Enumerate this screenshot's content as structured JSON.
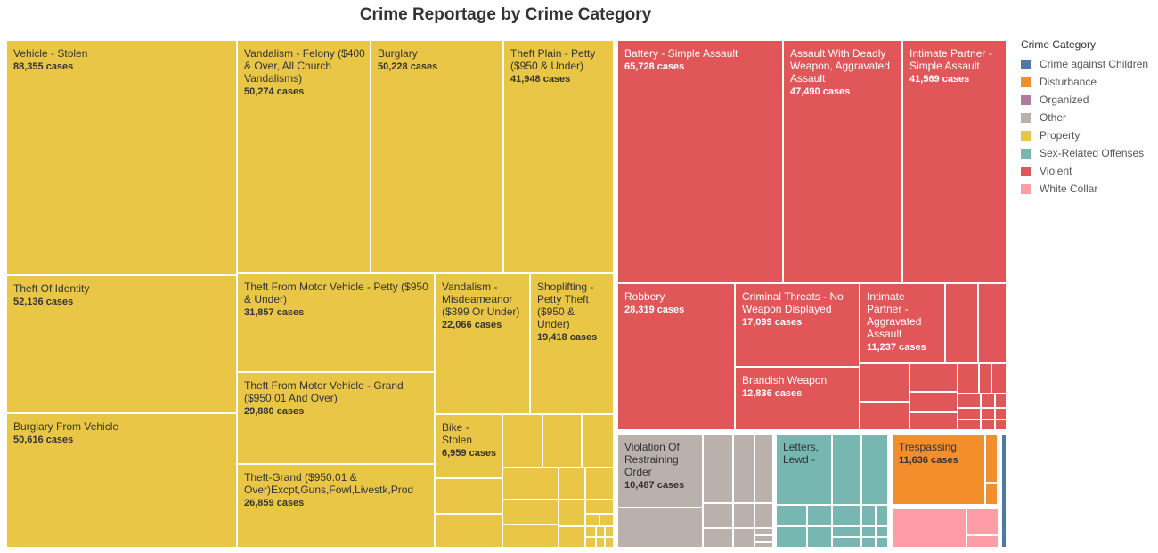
{
  "title": "Crime Reportage by Crime Category",
  "legend": {
    "title": "Crime Category",
    "items": [
      {
        "label": "Crime against Children",
        "color": "#4e79a7"
      },
      {
        "label": "Disturbance",
        "color": "#f28e2b"
      },
      {
        "label": "Organized",
        "color": "#b07aa1"
      },
      {
        "label": "Other",
        "color": "#bab0ac"
      },
      {
        "label": "Property",
        "color": "#e9c645"
      },
      {
        "label": "Sex-Related Offenses",
        "color": "#76b7b2"
      },
      {
        "label": "Violent",
        "color": "#e15759"
      },
      {
        "label": "White Collar",
        "color": "#ff9da7"
      }
    ]
  },
  "chart_data": {
    "type": "treemap",
    "title": "Crime Reportage by Crime Category",
    "value_suffix": " cases",
    "groups": [
      {
        "category": "Property",
        "items": [
          {
            "name": "Vehicle - Stolen",
            "value": 88355,
            "value_label": "88,355"
          },
          {
            "name": "Vandalism - Felony ($400 & Over, All Church Vandalisms)",
            "value": 50274,
            "value_label": "50,274"
          },
          {
            "name": "Burglary",
            "value": 50228,
            "value_label": "50,228"
          },
          {
            "name": "Theft Plain - Petty ($950 & Under)",
            "value": 41948,
            "value_label": "41,948"
          },
          {
            "name": "Theft Of Identity",
            "value": 52136,
            "value_label": "52,136"
          },
          {
            "name": "Theft From Motor Vehicle - Petty ($950 & Under)",
            "value": 31857,
            "value_label": "31,857"
          },
          {
            "name": "Vandalism - Misdeameanor ($399 Or Under)",
            "value": 22066,
            "value_label": "22,066"
          },
          {
            "name": "Shoplifting - Petty Theft ($950 & Under)",
            "value": 19418,
            "value_label": "19,418"
          },
          {
            "name": "Theft From Motor Vehicle - Grand ($950.01 And Over)",
            "value": 29880,
            "value_label": "29,880"
          },
          {
            "name": "Burglary From Vehicle",
            "value": 50616,
            "value_label": "50,616"
          },
          {
            "name": "Bike - Stolen",
            "value": 6959,
            "value_label": "6,959"
          },
          {
            "name": "Theft-Grand ($950.01 & Over)Excpt,Guns,Fowl,Livestk,Prod",
            "value": 26859,
            "value_label": "26,859"
          }
        ]
      },
      {
        "category": "Violent",
        "items": [
          {
            "name": "Battery - Simple Assault",
            "value": 65728,
            "value_label": "65,728"
          },
          {
            "name": "Assault With Deadly Weapon, Aggravated Assault",
            "value": 47490,
            "value_label": "47,490"
          },
          {
            "name": "Intimate Partner - Simple Assault",
            "value": 41569,
            "value_label": "41,569"
          },
          {
            "name": "Robbery",
            "value": 28319,
            "value_label": "28,319"
          },
          {
            "name": "Criminal Threats - No Weapon Displayed",
            "value": 17099,
            "value_label": "17,099"
          },
          {
            "name": "Intimate Partner - Aggravated Assault",
            "value": 11237,
            "value_label": "11,237"
          },
          {
            "name": "Brandish Weapon",
            "value": 12836,
            "value_label": "12,836"
          }
        ]
      },
      {
        "category": "Other",
        "items": [
          {
            "name": "Violation Of Restraining Order",
            "value": 10487,
            "value_label": "10,487"
          }
        ]
      },
      {
        "category": "Sex-Related Offenses",
        "items": [
          {
            "name": "Letters, Lewd -",
            "value": null,
            "value_label": ""
          }
        ]
      },
      {
        "category": "Disturbance",
        "items": [
          {
            "name": "Trespassing",
            "value": 11636,
            "value_label": "11,636"
          }
        ]
      }
    ]
  }
}
